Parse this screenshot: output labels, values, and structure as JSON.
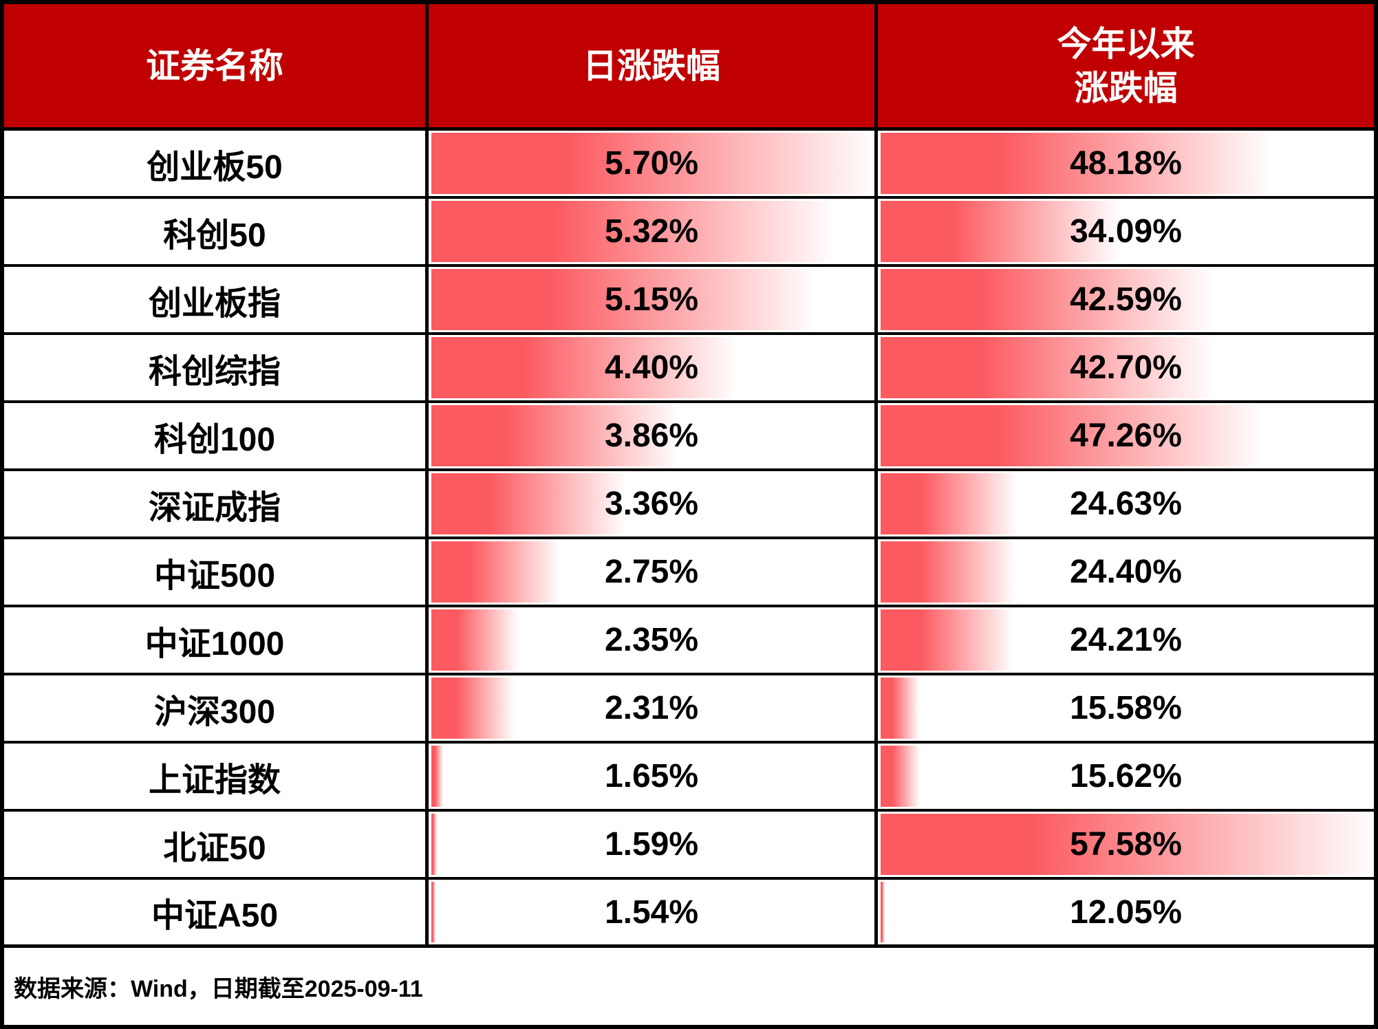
{
  "table": {
    "headers": {
      "name": "证券名称",
      "daily": "日涨跌幅",
      "ytd_line1": "今年以来",
      "ytd_line2": "涨跌幅"
    },
    "rows": [
      {
        "name": "创业板50",
        "daily": "5.70%",
        "ytd": "48.18%"
      },
      {
        "name": "科创50",
        "daily": "5.32%",
        "ytd": "34.09%"
      },
      {
        "name": "创业板指",
        "daily": "5.15%",
        "ytd": "42.59%"
      },
      {
        "name": "科创综指",
        "daily": "4.40%",
        "ytd": "42.70%"
      },
      {
        "name": "科创100",
        "daily": "3.86%",
        "ytd": "47.26%"
      },
      {
        "name": "深证成指",
        "daily": "3.36%",
        "ytd": "24.63%"
      },
      {
        "name": "中证500",
        "daily": "2.75%",
        "ytd": "24.40%"
      },
      {
        "name": "中证1000",
        "daily": "2.35%",
        "ytd": "24.21%"
      },
      {
        "name": "沪深300",
        "daily": "2.31%",
        "ytd": "15.58%"
      },
      {
        "name": "上证指数",
        "daily": "1.65%",
        "ytd": "15.62%"
      },
      {
        "name": "北证50",
        "daily": "1.59%",
        "ytd": "57.58%"
      },
      {
        "name": "中证A50",
        "daily": "1.54%",
        "ytd": "12.05%"
      }
    ]
  },
  "source_note": "数据来源：Wind，日期截至2025-09-11",
  "colors": {
    "header_bg": "#C00000",
    "header_text": "#FFFFFF",
    "bar": "#FB5A60",
    "border": "#000000",
    "value_text": "#000000"
  },
  "chart_data": {
    "type": "table",
    "columns": [
      "证券名称",
      "日涨跌幅",
      "今年以来涨跌幅"
    ],
    "rows": [
      [
        "创业板50",
        5.7,
        48.18
      ],
      [
        "科创50",
        5.32,
        34.09
      ],
      [
        "创业板指",
        5.15,
        42.59
      ],
      [
        "科创综指",
        4.4,
        42.7
      ],
      [
        "科创100",
        3.86,
        47.26
      ],
      [
        "深证成指",
        3.36,
        24.63
      ],
      [
        "中证500",
        2.75,
        24.4
      ],
      [
        "中证1000",
        2.35,
        24.21
      ],
      [
        "沪深300",
        2.31,
        15.58
      ],
      [
        "上证指数",
        1.65,
        15.62
      ],
      [
        "北证50",
        1.59,
        57.58
      ],
      [
        "中证A50",
        1.54,
        12.05
      ]
    ],
    "databar": {
      "style": "red gradient data bar, solid at left fading to white at bar end",
      "scale": "bar length = (value - column min) / (column max - column min) of cell width, per column",
      "daily_min": 1.54,
      "daily_max": 5.7,
      "ytd_min": 12.05,
      "ytd_max": 57.58
    },
    "source": "数据来源：Wind，日期截至2025-09-11"
  }
}
